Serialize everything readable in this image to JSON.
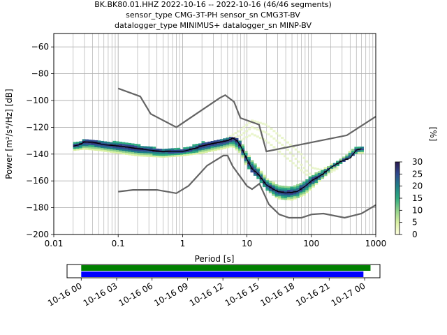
{
  "title_lines": [
    "BK.BK80.01.HHZ   2022-10-16 -- 2022-10-16  (46/46 segments)",
    "sensor_type CMG-3T-PH sensor_sn CMG3T-BV",
    "datalogger_type MINIMUS+ datalogger_sn MINP-BV"
  ],
  "chart_data": [
    {
      "type": "heatmap",
      "xlabel": "Period [s]",
      "ylabel": "Power [m²/s⁴/Hz] [dB]",
      "xscale": "log",
      "xlim": [
        0.01,
        1000
      ],
      "ylim": [
        -200,
        -50
      ],
      "x_tick_labels": [
        "0.01",
        "0.1",
        "1",
        "10",
        "100",
        "1000"
      ],
      "y_ticks": [
        -60,
        -80,
        -100,
        -120,
        -140,
        -160,
        -180,
        -200
      ],
      "grid": true,
      "colorbar": {
        "label": "[%]",
        "ticks": [
          0,
          5,
          10,
          15,
          20,
          25,
          30
        ],
        "range": [
          0,
          30
        ],
        "colors": [
          "#ffffe0",
          "#d9f0a3",
          "#8fd18a",
          "#2eaa7f",
          "#1f7f87",
          "#2f4a8f",
          "#2a1a4f"
        ]
      },
      "high_noise_model": {
        "name": "NHNM",
        "color": "#646464",
        "x": [
          0.1,
          0.22,
          0.32,
          0.8,
          3.8,
          4.6,
          6.3,
          7.9,
          15.4,
          20,
          354.8,
          1000
        ],
        "y": [
          -91,
          -97,
          -110,
          -120,
          -98,
          -96,
          -101,
          -113,
          -118,
          -138,
          -126,
          -112
        ]
      },
      "low_noise_model": {
        "name": "NLNM",
        "color": "#646464",
        "x": [
          0.1,
          0.17,
          0.4,
          0.8,
          1.24,
          2.4,
          4.3,
          5.0,
          6.0,
          10.0,
          12.0,
          15.6,
          21.9,
          31.6,
          45,
          70,
          101,
          154,
          328,
          600,
          1000
        ],
        "y": [
          -168,
          -166.7,
          -166.7,
          -169.2,
          -163.7,
          -148.6,
          -141.1,
          -141.1,
          -149.0,
          -163.8,
          -166.2,
          -162.1,
          -177.5,
          -185,
          -187.5,
          -187.5,
          -185,
          -184.4,
          -187.5,
          -184.4,
          -178
        ]
      },
      "mode_curve": {
        "name": "mode",
        "color": "#000000",
        "x": [
          0.02,
          0.025,
          0.03,
          0.04,
          0.06,
          0.1,
          0.15,
          0.2,
          0.3,
          0.5,
          0.8,
          1.0,
          1.5,
          2.0,
          3.0,
          4.0,
          5.0,
          6.0,
          7.0,
          8.0,
          10.0,
          12.0,
          15.0,
          20.0,
          30.0,
          40.0,
          60.0,
          80.0,
          100.0,
          150.0,
          200.0,
          300.0,
          400.0,
          500.0,
          600.0
        ],
        "y": [
          -134,
          -133,
          -131,
          -131,
          -133,
          -134,
          -135,
          -136,
          -137,
          -138,
          -138,
          -138,
          -136,
          -134,
          -132,
          -131,
          -130,
          -128,
          -130,
          -134,
          -144,
          -151,
          -155,
          -163,
          -168,
          -169,
          -168,
          -164,
          -160,
          -155,
          -150,
          -145,
          -143,
          -137,
          -136
        ]
      },
      "psd_band": {
        "x": [
          0.02,
          0.03,
          0.05,
          0.1,
          0.2,
          0.5,
          1.0,
          2.0,
          4.0,
          6.0,
          8.0,
          10.0,
          15.0,
          20.0,
          30.0,
          50.0,
          80.0,
          120.0,
          200.0,
          300.0,
          500.0,
          650.0
        ],
        "y_upper": [
          -132,
          -129,
          -130,
          -131,
          -133,
          -136,
          -136,
          -131,
          -129,
          -127,
          -130,
          -139,
          -150,
          -158,
          -163,
          -164,
          -160,
          -154,
          -148,
          -143,
          -134,
          -134
        ],
        "y_lower": [
          -137,
          -136,
          -137,
          -139,
          -141,
          -142,
          -141,
          -139,
          -136,
          -134,
          -139,
          -149,
          -158,
          -166,
          -173,
          -174,
          -170,
          -162,
          -152,
          -146,
          -139,
          -139
        ]
      },
      "faint_high_curves": {
        "x": [
          5.0,
          8.0,
          12.0,
          20.0,
          40.0,
          70.0,
          100.0,
          150.0,
          250.0
        ],
        "y_levels": [
          [
            -128,
            -122,
            -115,
            -118,
            -130,
            -140,
            -150,
            -152,
            -150
          ],
          [
            -130,
            -126,
            -120,
            -124,
            -135,
            -148,
            -156,
            -155,
            -150
          ],
          [
            -132,
            -130,
            -125,
            -130,
            -142,
            -152,
            -158,
            -157,
            -151
          ]
        ]
      },
      "segment_count": 46
    },
    {
      "type": "timeline",
      "x_tick_labels": [
        "10-16 00",
        "10-16 03",
        "10-16 06",
        "10-16 09",
        "10-16 12",
        "10-16 15",
        "10-16 18",
        "10-16 21",
        "10-17 00"
      ],
      "bars": [
        {
          "name": "data",
          "color": "#008000",
          "start_hours": 0,
          "end_hours": 24.5
        },
        {
          "name": "psd",
          "color": "#0000ff",
          "start_hours": 0,
          "end_hours": 23.9
        }
      ],
      "xlim_hours": [
        -1.2,
        25.3
      ]
    }
  ]
}
